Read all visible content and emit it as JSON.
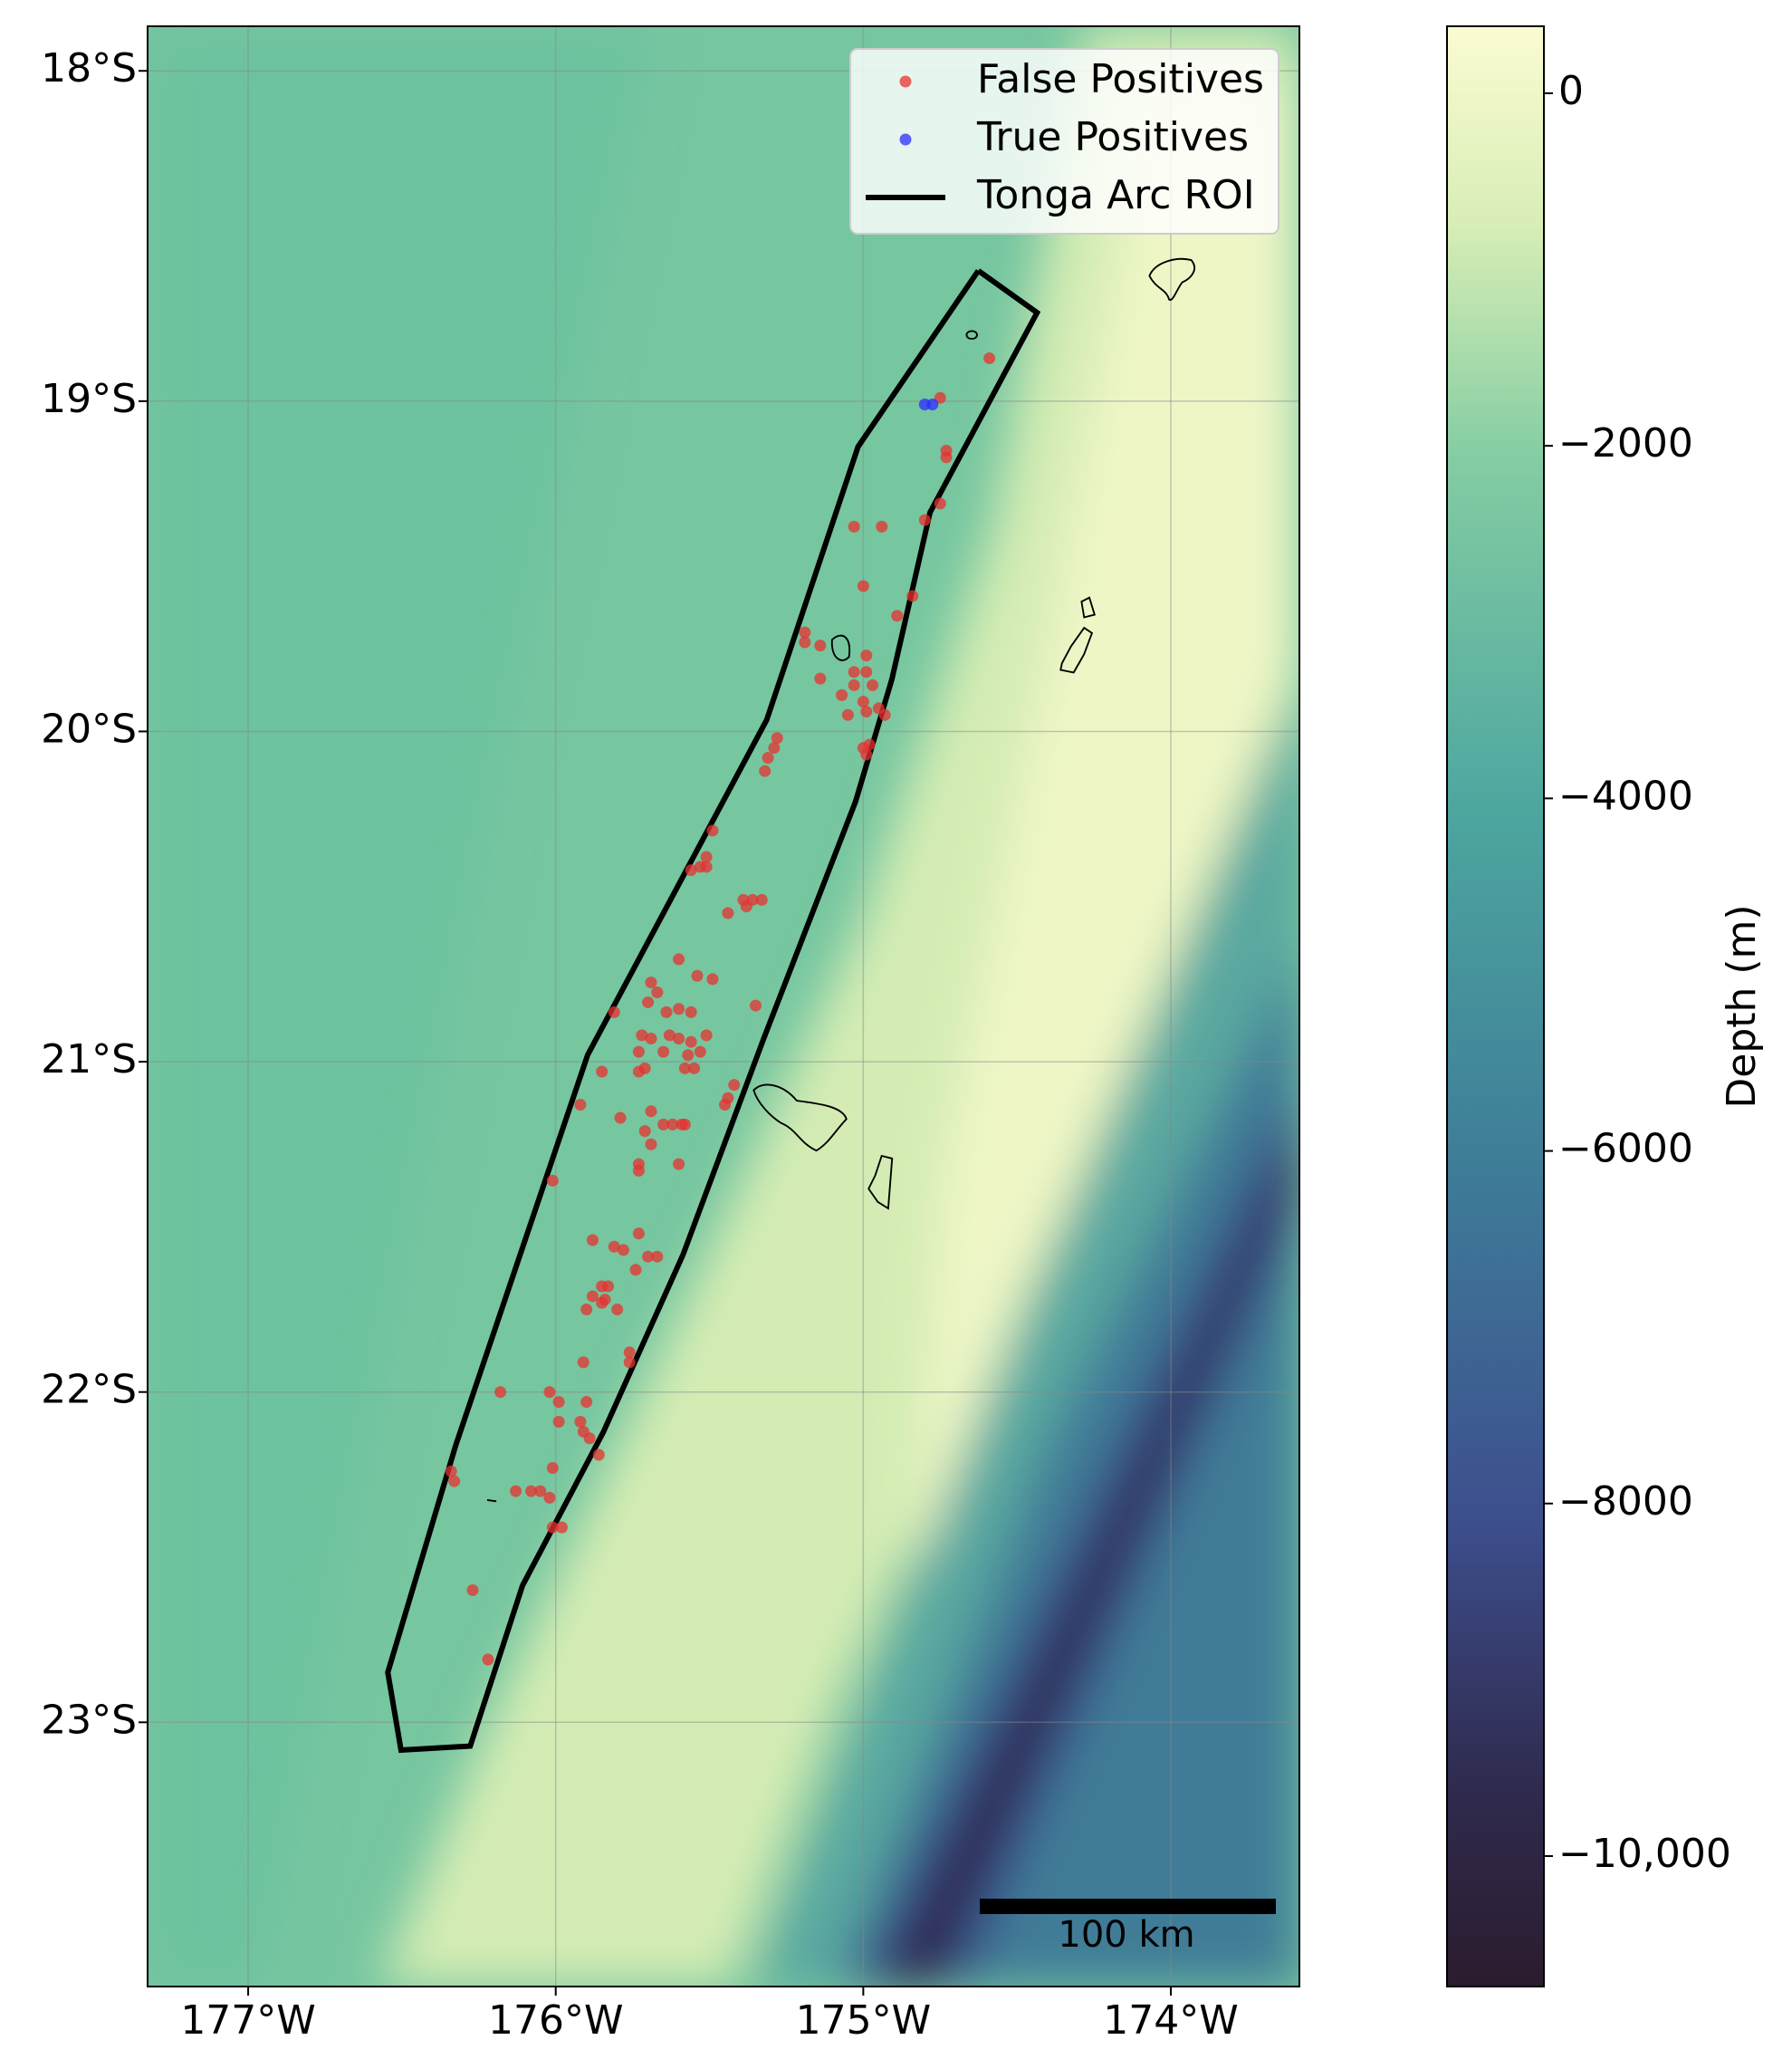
{
  "chart_data": {
    "type": "scatter",
    "xlim": [
      -177.327,
      -173.582
    ],
    "ylim": [
      -23.8,
      -17.865
    ],
    "xticks": [
      {
        "value": -177,
        "label": "177°W"
      },
      {
        "value": -176,
        "label": "176°W"
      },
      {
        "value": -175,
        "label": "175°W"
      },
      {
        "value": -174,
        "label": "174°W"
      }
    ],
    "yticks": [
      {
        "value": -18,
        "label": "18°S"
      },
      {
        "value": -19,
        "label": "19°S"
      },
      {
        "value": -20,
        "label": "20°S"
      },
      {
        "value": -21,
        "label": "21°S"
      },
      {
        "value": -22,
        "label": "22°S"
      },
      {
        "value": -23,
        "label": "23°S"
      }
    ],
    "grid": true,
    "legend": "upper right",
    "series": [
      {
        "name": "False Positives",
        "color": "#e8302f",
        "x": [
          -174.59,
          -174.75,
          -174.73,
          -174.73,
          -174.75,
          -174.8,
          -175.03,
          -174.94,
          -175.0,
          -174.84,
          -174.89,
          -175.19,
          -175.19,
          -175.14,
          -175.14,
          -175.07,
          -175.03,
          -174.99,
          -174.99,
          -174.97,
          -175.03,
          -175.0,
          -174.95,
          -174.93,
          -175.05,
          -174.99,
          -175.0,
          -174.99,
          -174.98,
          -175.28,
          -175.31,
          -175.32,
          -175.29,
          -175.49,
          -175.51,
          -175.53,
          -175.56,
          -175.51,
          -175.39,
          -175.36,
          -175.33,
          -175.38,
          -175.44,
          -175.6,
          -175.54,
          -175.49,
          -175.69,
          -175.67,
          -175.7,
          -175.6,
          -175.81,
          -175.64,
          -175.56,
          -175.35,
          -175.72,
          -175.69,
          -175.63,
          -175.6,
          -175.56,
          -175.51,
          -175.73,
          -175.65,
          -175.57,
          -175.53,
          -175.71,
          -175.58,
          -175.85,
          -175.73,
          -175.55,
          -175.42,
          -175.44,
          -175.45,
          -175.92,
          -175.69,
          -175.79,
          -175.65,
          -175.62,
          -175.59,
          -175.58,
          -175.71,
          -175.69,
          -175.73,
          -175.73,
          -175.6,
          -176.01,
          -175.73,
          -175.88,
          -175.81,
          -175.78,
          -175.7,
          -175.67,
          -175.74,
          -175.85,
          -175.83,
          -175.88,
          -175.84,
          -175.9,
          -175.8,
          -175.85,
          -175.76,
          -175.76,
          -175.91,
          -176.18,
          -176.02,
          -175.99,
          -175.9,
          -175.92,
          -175.99,
          -175.91,
          -175.89,
          -175.86,
          -176.01,
          -176.34,
          -176.33,
          -176.13,
          -176.08,
          -176.05,
          -176.02,
          -176.01,
          -175.98,
          -176.27,
          -176.22
        ],
        "y": [
          -18.87,
          -18.99,
          -19.15,
          -19.17,
          -19.31,
          -19.36,
          -19.38,
          -19.38,
          -19.56,
          -19.59,
          -19.65,
          -19.7,
          -19.73,
          -19.74,
          -19.84,
          -19.89,
          -19.82,
          -19.77,
          -19.82,
          -19.86,
          -19.86,
          -19.91,
          -19.93,
          -19.95,
          -19.95,
          -19.94,
          -20.05,
          -20.07,
          -20.04,
          -20.02,
          -20.08,
          -20.12,
          -20.05,
          -20.3,
          -20.38,
          -20.41,
          -20.42,
          -20.41,
          -20.51,
          -20.51,
          -20.51,
          -20.53,
          -20.55,
          -20.69,
          -20.74,
          -20.75,
          -20.76,
          -20.79,
          -20.82,
          -20.84,
          -20.85,
          -20.85,
          -20.85,
          -20.83,
          -20.92,
          -20.93,
          -20.92,
          -20.93,
          -20.94,
          -20.92,
          -20.97,
          -20.97,
          -20.98,
          -20.97,
          -21.02,
          -21.02,
          -21.03,
          -21.03,
          -21.02,
          -21.07,
          -21.11,
          -21.13,
          -21.13,
          -21.15,
          -21.17,
          -21.19,
          -21.19,
          -21.19,
          -21.19,
          -21.21,
          -21.25,
          -21.31,
          -21.33,
          -21.31,
          -21.36,
          -21.52,
          -21.54,
          -21.56,
          -21.57,
          -21.59,
          -21.59,
          -21.63,
          -21.68,
          -21.68,
          -21.71,
          -21.72,
          -21.75,
          -21.75,
          -21.73,
          -21.88,
          -21.91,
          -21.91,
          -22.0,
          -22.0,
          -22.03,
          -22.03,
          -22.09,
          -22.09,
          -22.12,
          -22.14,
          -22.19,
          -22.23,
          -22.24,
          -22.27,
          -22.3,
          -22.3,
          -22.3,
          -22.32,
          -22.41,
          -22.41,
          -22.6,
          -22.81
        ]
      },
      {
        "name": "True Positives",
        "color": "#2b2bff",
        "x": [
          -174.8,
          -174.775
        ],
        "y": [
          -19.01,
          -19.01
        ]
      },
      {
        "name": "Tonga Arc ROI",
        "type": "line",
        "color": "#000000",
        "x": [
          -174.626,
          -174.435,
          -174.783,
          -174.907,
          -175.025,
          -175.323,
          -175.586,
          -175.845,
          -176.108,
          -176.278,
          -176.503,
          -176.546,
          -176.325,
          -175.896,
          -175.314,
          -175.017,
          -174.626
        ],
        "y": [
          -18.605,
          -18.732,
          -19.337,
          -19.842,
          -20.212,
          -20.928,
          -21.584,
          -22.121,
          -22.586,
          -23.072,
          -23.084,
          -22.849,
          -22.161,
          -20.979,
          -19.965,
          -19.138,
          -18.605
        ]
      }
    ],
    "colorbar": {
      "label": "Depth (m)",
      "lim": [
        -10740,
        380
      ],
      "ticks": [
        0,
        {
          "value": -2000,
          "label": "−2000"
        },
        {
          "value": -4000,
          "label": "−4000"
        },
        {
          "value": -6000,
          "label": "−6000"
        },
        {
          "value": -8000,
          "label": "−8000"
        },
        {
          "value": -10000,
          "label": "−10,000"
        }
      ]
    },
    "scale_bar": "100 km"
  }
}
